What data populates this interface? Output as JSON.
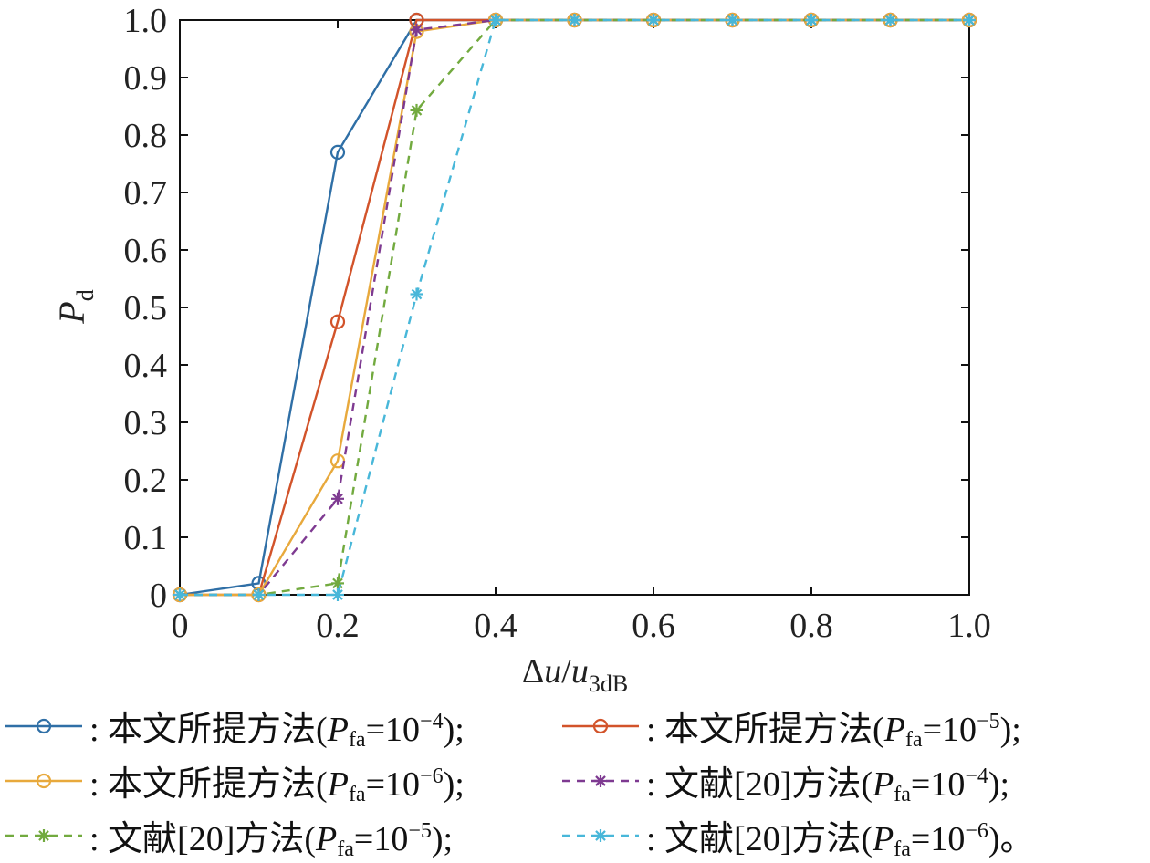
{
  "chart_data": {
    "type": "line",
    "xlabel": "Δu/u3dB",
    "xlabel_parts": {
      "delta": "Δ",
      "u": "u",
      "slash": "/",
      "u2": "u",
      "sub": "3dB"
    },
    "ylabel": "Pd",
    "ylabel_parts": {
      "main": "P",
      "sub": "d"
    },
    "xlim": [
      0,
      1
    ],
    "ylim": [
      0,
      1
    ],
    "x_ticks": [
      "0",
      "0.2",
      "0.4",
      "0.6",
      "0.8",
      "1.0"
    ],
    "y_ticks": [
      "0",
      "0.1",
      "0.2",
      "0.3",
      "0.4",
      "0.5",
      "0.6",
      "0.7",
      "0.8",
      "0.9",
      "1.0"
    ],
    "grid": false,
    "legend_position": "bottom",
    "x": [
      0,
      0.1,
      0.2,
      0.3,
      0.4,
      0.5,
      0.6,
      0.7,
      0.8,
      0.9,
      1.0
    ],
    "series": [
      {
        "name": "本文所提方法(Pfa=10−4);",
        "label_prefix": ": 本文所提方法(",
        "pfa_exp": "−4",
        "label_suffix": ");",
        "color": "#2f6fa6",
        "dash": "solid",
        "marker": "circle",
        "values": [
          0,
          0.02,
          0.77,
          1.0,
          1.0,
          1.0,
          1.0,
          1.0,
          1.0,
          1.0,
          1.0
        ]
      },
      {
        "name": "本文所提方法(Pfa=10−5);",
        "label_prefix": ": 本文所提方法(",
        "pfa_exp": "−5",
        "label_suffix": ");",
        "color": "#d2532a",
        "dash": "solid",
        "marker": "circle",
        "values": [
          0,
          0,
          0.475,
          1.0,
          1.0,
          1.0,
          1.0,
          1.0,
          1.0,
          1.0,
          1.0
        ]
      },
      {
        "name": "本文所提方法(Pfa=10−6);",
        "label_prefix": ": 本文所提方法(",
        "pfa_exp": "−6",
        "label_suffix": ");",
        "color": "#e8a93c",
        "dash": "solid",
        "marker": "circle",
        "values": [
          0,
          0,
          0.233,
          0.98,
          1.0,
          1.0,
          1.0,
          1.0,
          1.0,
          1.0,
          1.0
        ]
      },
      {
        "name": "文献[20]方法(Pfa=10−4);",
        "label_prefix": ": 文献[20]方法(",
        "pfa_exp": "−4",
        "label_suffix": ");",
        "color": "#7e3a91",
        "dash": "dashed",
        "marker": "asterisk",
        "values": [
          0,
          0,
          0.167,
          0.983,
          1.0,
          1.0,
          1.0,
          1.0,
          1.0,
          1.0,
          1.0
        ]
      },
      {
        "name": "文献[20]方法(Pfa=10−5);",
        "label_prefix": ": 文献[20]方法(",
        "pfa_exp": "−5",
        "label_suffix": ");",
        "color": "#72aa3f",
        "dash": "dashed",
        "marker": "asterisk",
        "values": [
          0,
          0,
          0.02,
          0.843,
          1.0,
          1.0,
          1.0,
          1.0,
          1.0,
          1.0,
          1.0
        ]
      },
      {
        "name": "文献[20]方法(Pfa=10−6)。",
        "label_prefix": ": 文献[20]方法(",
        "pfa_exp": "−6",
        "label_suffix": ")。",
        "color": "#48b7d9",
        "dash": "dashed",
        "marker": "asterisk",
        "values": [
          0,
          0,
          0,
          0.523,
          1.0,
          1.0,
          1.0,
          1.0,
          1.0,
          1.0,
          1.0
        ]
      }
    ],
    "legend_pfa_parts": {
      "P": "P",
      "sub": "fa",
      "eq_base": "=10"
    }
  }
}
